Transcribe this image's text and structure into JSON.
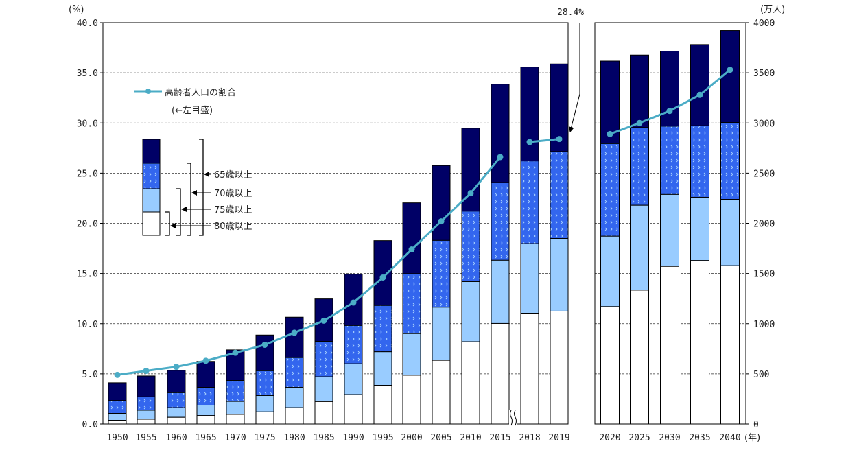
{
  "chart_data": {
    "type": "bar",
    "subtype": "stacked bar with line overlay, two panels",
    "categories": [
      "1950",
      "1955",
      "1960",
      "1965",
      "1970",
      "1975",
      "1980",
      "1985",
      "1990",
      "1995",
      "2000",
      "2005",
      "2010",
      "2015",
      "2018",
      "2019",
      "2020",
      "2025",
      "2030",
      "2035",
      "2040"
    ],
    "panels": {
      "left": [
        "1950",
        "1955",
        "1960",
        "1965",
        "1970",
        "1975",
        "1980",
        "1985",
        "1990",
        "1995",
        "2000",
        "2005",
        "2010",
        "2015",
        "2018",
        "2019"
      ],
      "right": [
        "2020",
        "2025",
        "2030",
        "2035",
        "2040"
      ]
    },
    "axis_break_between": [
      "2015",
      "2018"
    ],
    "series": [
      {
        "name": "65歳以上",
        "axis": "right",
        "color": "#000066",
        "values": [
          411,
          479,
          535,
          624,
          739,
          887,
          1065,
          1247,
          1493,
          1828,
          2204,
          2576,
          2948,
          3387,
          3558,
          3588,
          3617,
          3677,
          3716,
          3782,
          3921
        ]
      },
      {
        "name": "70歳以上",
        "axis": "right",
        "color": "#3366ee",
        "pattern": "dotted",
        "values": [
          234,
          271,
          312,
          365,
          434,
          531,
          662,
          824,
          982,
          1181,
          1498,
          1830,
          2121,
          2406,
          2621,
          2715,
          2794,
          2955,
          2968,
          2972,
          3004
        ]
      },
      {
        "name": "75歳以上",
        "axis": "right",
        "color": "#99ccff",
        "values": [
          106,
          137,
          163,
          188,
          225,
          284,
          366,
          471,
          600,
          720,
          901,
          1164,
          1419,
          1632,
          1797,
          1849,
          1872,
          2180,
          2288,
          2260,
          2239
        ]
      },
      {
        "name": "80歳以上",
        "axis": "right",
        "color": "#ffffff",
        "values": [
          37,
          48,
          67,
          84,
          96,
          121,
          163,
          223,
          294,
          386,
          486,
          635,
          820,
          1002,
          1104,
          1125,
          1170,
          1334,
          1571,
          1629,
          1578
        ]
      },
      {
        "name": "高齢者人口の割合",
        "type": "line",
        "axis": "left",
        "color": "#4bacc6",
        "values": [
          4.9,
          5.3,
          5.7,
          6.3,
          7.1,
          7.9,
          9.1,
          10.3,
          12.1,
          14.6,
          17.4,
          20.2,
          23.0,
          26.6,
          28.1,
          28.4,
          28.9,
          30.0,
          31.2,
          32.8,
          35.3
        ]
      }
    ],
    "legend_line_note": "(←左目盛)",
    "y_left": {
      "label": "(%)",
      "ylim": [
        0,
        40
      ],
      "ticks": [
        "0.0",
        "5.0",
        "10.0",
        "15.0",
        "20.0",
        "25.0",
        "30.0",
        "35.0",
        "40.0"
      ]
    },
    "y_right": {
      "label": "(万人)",
      "ylim": [
        0,
        4000
      ],
      "ticks": [
        "0",
        "500",
        "1000",
        "1500",
        "2000",
        "2500",
        "3000",
        "3500",
        "4000"
      ]
    },
    "x_unit": "(年)",
    "annotation": "28.4%",
    "grid": "dashed horizontal",
    "legend_placement": "top-left"
  }
}
